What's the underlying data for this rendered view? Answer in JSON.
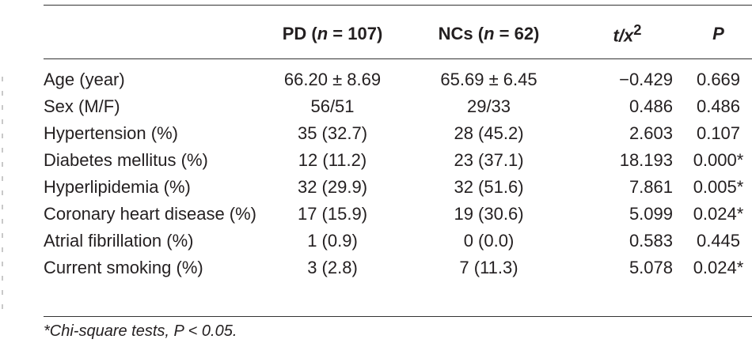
{
  "table": {
    "headers": {
      "variable": "",
      "pd": {
        "prefix": "PD (",
        "n_symbol": "n",
        "rest": " = 107)"
      },
      "nc": {
        "prefix": "NCs (",
        "n_symbol": "n",
        "rest": " = 62)"
      },
      "stat": {
        "base": "t/x",
        "sup": "2"
      },
      "p": "P"
    },
    "rows": [
      {
        "variable": "Age (year)",
        "pd": "66.20 ± 8.69",
        "nc": "65.69 ± 6.45",
        "stat": "−0.429",
        "p": "0.669"
      },
      {
        "variable": "Sex (M/F)",
        "pd": "56/51",
        "nc": "29/33",
        "stat": "0.486",
        "p": "0.486"
      },
      {
        "variable": "Hypertension (%)",
        "pd": "35 (32.7)",
        "nc": "28 (45.2)",
        "stat": "2.603",
        "p": "0.107"
      },
      {
        "variable": "Diabetes mellitus (%)",
        "pd": "12 (11.2)",
        "nc": "23 (37.1)",
        "stat": "18.193",
        "p": "0.000*"
      },
      {
        "variable": "Hyperlipidemia (%)",
        "pd": "32 (29.9)",
        "nc": "32 (51.6)",
        "stat": "7.861",
        "p": "0.005*"
      },
      {
        "variable": "Coronary heart disease (%)",
        "pd": "17 (15.9)",
        "nc": "19 (30.6)",
        "stat": "5.099",
        "p": "0.024*"
      },
      {
        "variable": "Atrial fibrillation (%)",
        "pd": "1 (0.9)",
        "nc": "0 (0.0)",
        "stat": "0.583",
        "p": "0.445"
      },
      {
        "variable": "Current smoking (%)",
        "pd": "3 (2.8)",
        "nc": "7 (11.3)",
        "stat": "5.078",
        "p": "0.024*"
      }
    ]
  },
  "footnote": "*Chi-square tests, P < 0.05."
}
